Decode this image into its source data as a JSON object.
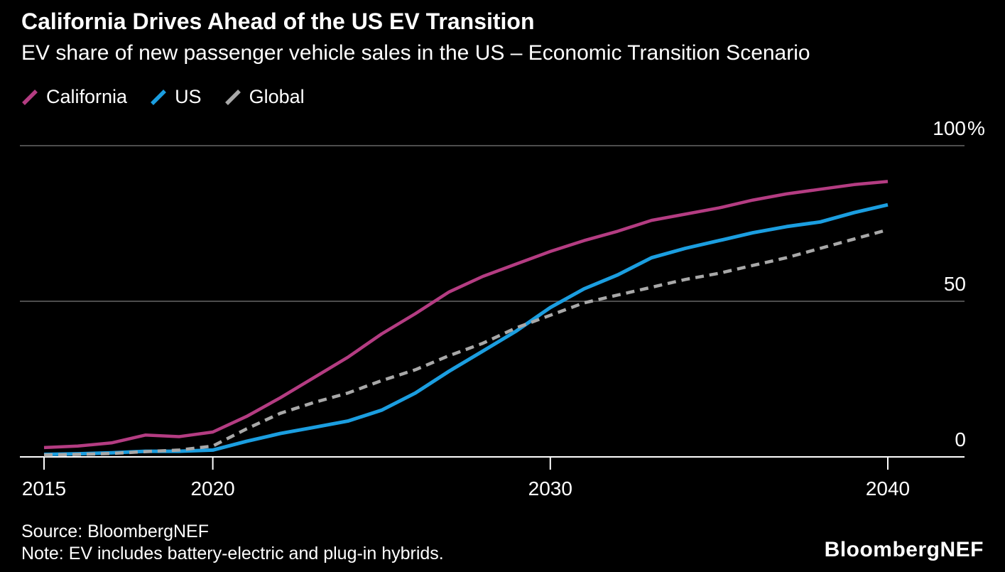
{
  "header": {
    "title": "California Drives Ahead of the US EV Transition",
    "subtitle": "EV share of new passenger vehicle sales in the US – Economic Transition Scenario"
  },
  "footer": {
    "source": "Source: BloombergNEF",
    "note": "Note: EV includes battery-electric and plug-in hybrids.",
    "logo": "BloombergNEF"
  },
  "colors": {
    "background": "#000000",
    "text": "#ffffff",
    "gridline": "#4d4d4d",
    "axis_line": "#ffffff",
    "california": "#b43c82",
    "us": "#1b9ee0",
    "global": "#a8a8a8"
  },
  "chart_data": {
    "type": "line",
    "title": "California Drives Ahead of the US EV Transition",
    "subtitle": "EV share of new passenger vehicle sales in the US – Economic Transition Scenario",
    "unit": "%",
    "grid": "horizontal-only",
    "legend_position": "top-left",
    "axis_label_side": "right",
    "xlim": [
      2015,
      2040
    ],
    "ylim": [
      0,
      100
    ],
    "x": [
      2015,
      2016,
      2017,
      2018,
      2019,
      2020,
      2021,
      2022,
      2023,
      2024,
      2025,
      2026,
      2027,
      2028,
      2029,
      2030,
      2031,
      2032,
      2033,
      2034,
      2035,
      2036,
      2037,
      2038,
      2039,
      2040
    ],
    "series": [
      {
        "name": "California",
        "color": "#b43c82",
        "line_style": "solid",
        "values": [
          3,
          3.5,
          4.5,
          7,
          6.5,
          8,
          13,
          19,
          25.5,
          32,
          39.5,
          46,
          53,
          58,
          62,
          66,
          69.5,
          72.5,
          76,
          78,
          80,
          82.5,
          84.5,
          86,
          87.5,
          88.5
        ]
      },
      {
        "name": "US",
        "color": "#1b9ee0",
        "line_style": "solid",
        "values": [
          0.8,
          1,
          1.3,
          1.8,
          1.8,
          2.2,
          5,
          7.5,
          9.5,
          11.5,
          15,
          20.5,
          27.5,
          34,
          40.5,
          48,
          54,
          58.5,
          64,
          67,
          69.5,
          72,
          74,
          75.5,
          78.5,
          81
        ]
      },
      {
        "name": "Global",
        "color": "#a8a8a8",
        "line_style": "dashed",
        "values": [
          0.6,
          0.8,
          1.1,
          1.7,
          2.2,
          3.5,
          9,
          14,
          17.5,
          20.5,
          24.5,
          28,
          32.5,
          36.5,
          41.5,
          45.5,
          49.5,
          52,
          54.5,
          57,
          59,
          61.5,
          64,
          67,
          70,
          73
        ]
      }
    ],
    "yticks": [
      {
        "value": 0,
        "label": "0",
        "suffix": ""
      },
      {
        "value": 50,
        "label": "50",
        "suffix": ""
      },
      {
        "value": 100,
        "label": "100",
        "suffix": "%"
      }
    ],
    "xticks": [
      {
        "value": 2015,
        "label": "2015"
      },
      {
        "value": 2020,
        "label": "2020"
      },
      {
        "value": 2030,
        "label": "2030"
      },
      {
        "value": 2040,
        "label": "2040"
      }
    ]
  }
}
